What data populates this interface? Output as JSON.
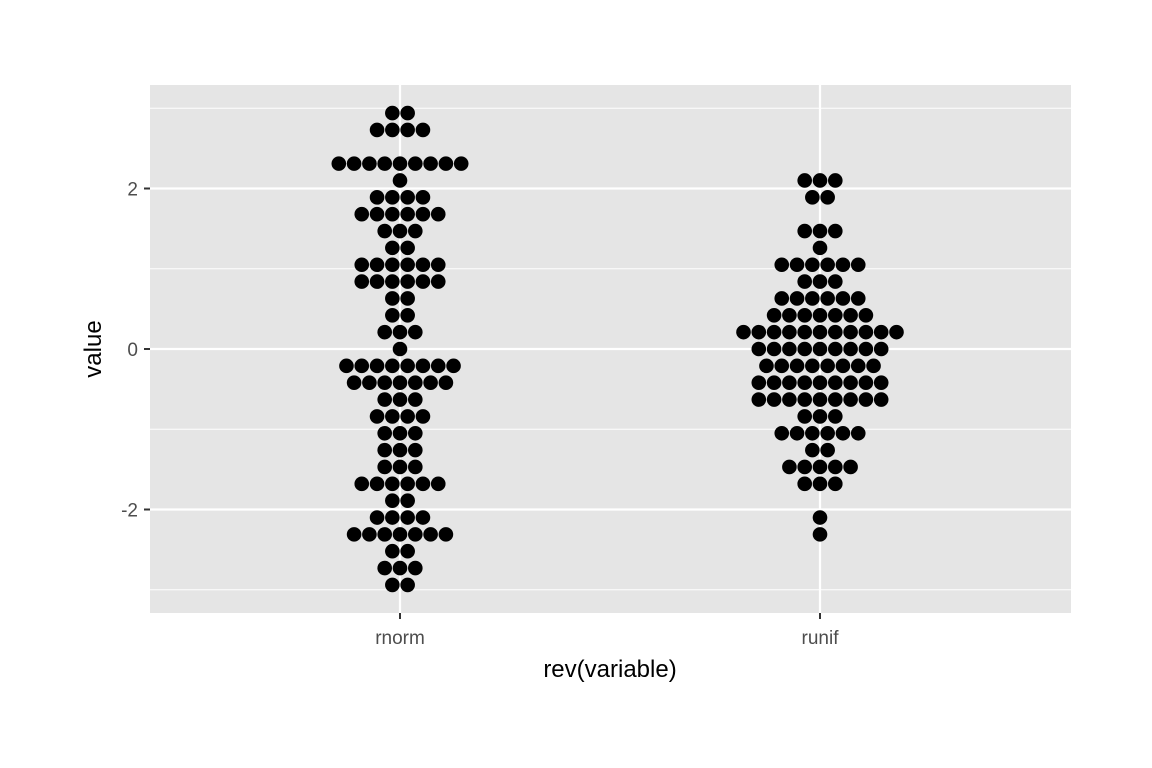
{
  "chart_data": {
    "type": "dotplot",
    "title": "",
    "xlabel": "rev(variable)",
    "ylabel": "value",
    "categories": [
      "rnorm",
      "runif"
    ],
    "y_ticks": [
      -2,
      0,
      2
    ],
    "y_tick_labels": [
      "-2",
      "0",
      "2"
    ],
    "ylim": [
      -3.3,
      3.3
    ],
    "grid": true,
    "legend": "none",
    "colors": {
      "panel": "#e5e5e5",
      "grid": "#ffffff",
      "dot": "#000000"
    },
    "series": [
      {
        "category": "rnorm",
        "bins": [
          {
            "y": 2.94,
            "count": 2
          },
          {
            "y": 2.73,
            "count": 4
          },
          {
            "y": 2.31,
            "count": 9
          },
          {
            "y": 2.1,
            "count": 1
          },
          {
            "y": 1.89,
            "count": 4
          },
          {
            "y": 1.68,
            "count": 6
          },
          {
            "y": 1.47,
            "count": 3
          },
          {
            "y": 1.26,
            "count": 2
          },
          {
            "y": 1.05,
            "count": 6
          },
          {
            "y": 0.84,
            "count": 6
          },
          {
            "y": 0.63,
            "count": 2
          },
          {
            "y": 0.42,
            "count": 2
          },
          {
            "y": 0.21,
            "count": 3
          },
          {
            "y": 0.0,
            "count": 1
          },
          {
            "y": -0.21,
            "count": 8
          },
          {
            "y": -0.42,
            "count": 7
          },
          {
            "y": -0.63,
            "count": 3
          },
          {
            "y": -0.84,
            "count": 4
          },
          {
            "y": -1.05,
            "count": 3
          },
          {
            "y": -1.26,
            "count": 3
          },
          {
            "y": -1.47,
            "count": 3
          },
          {
            "y": -1.68,
            "count": 6
          },
          {
            "y": -1.89,
            "count": 2
          },
          {
            "y": -2.1,
            "count": 4
          },
          {
            "y": -2.31,
            "count": 7
          },
          {
            "y": -2.52,
            "count": 2
          },
          {
            "y": -2.73,
            "count": 3
          },
          {
            "y": -2.94,
            "count": 2
          }
        ]
      },
      {
        "category": "runif",
        "bins": [
          {
            "y": 2.1,
            "count": 3
          },
          {
            "y": 1.89,
            "count": 2
          },
          {
            "y": 1.47,
            "count": 3
          },
          {
            "y": 1.26,
            "count": 1
          },
          {
            "y": 1.05,
            "count": 6
          },
          {
            "y": 0.84,
            "count": 3
          },
          {
            "y": 0.63,
            "count": 6
          },
          {
            "y": 0.42,
            "count": 7
          },
          {
            "y": 0.21,
            "count": 11
          },
          {
            "y": 0.0,
            "count": 9
          },
          {
            "y": -0.21,
            "count": 8
          },
          {
            "y": -0.42,
            "count": 9
          },
          {
            "y": -0.63,
            "count": 9
          },
          {
            "y": -0.84,
            "count": 3
          },
          {
            "y": -1.05,
            "count": 6
          },
          {
            "y": -1.26,
            "count": 2
          },
          {
            "y": -1.47,
            "count": 5
          },
          {
            "y": -1.68,
            "count": 3
          },
          {
            "y": -2.1,
            "count": 1
          },
          {
            "y": -2.31,
            "count": 1
          }
        ]
      }
    ]
  }
}
